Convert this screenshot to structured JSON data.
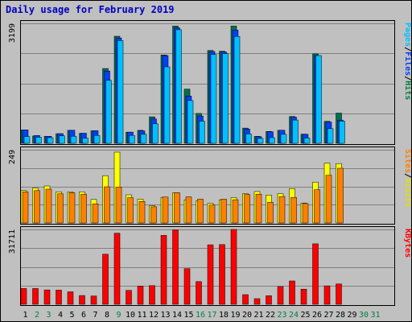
{
  "chart_data": {
    "type": "bar",
    "title": "Daily usage for February 2019",
    "days": [
      "1",
      "2",
      "3",
      "4",
      "5",
      "6",
      "7",
      "8",
      "9",
      "10",
      "11",
      "12",
      "13",
      "14",
      "15",
      "16",
      "17",
      "18",
      "19",
      "20",
      "21",
      "22",
      "23",
      "24",
      "25",
      "26",
      "27",
      "28",
      "29",
      "30",
      "31"
    ],
    "weekend_days": [
      "2",
      "3",
      "9",
      "16",
      "17",
      "23",
      "24",
      "30",
      "31"
    ],
    "panels": [
      {
        "name": "hits",
        "scale_max_label": "3199",
        "ylim": [
          0,
          3199
        ],
        "legend": [
          {
            "text": "Pages",
            "color": "#00c0ff"
          },
          {
            "text": "/",
            "color": "#000000"
          },
          {
            "text": "Files",
            "color": "#0040ff"
          },
          {
            "text": "/",
            "color": "#000000"
          },
          {
            "text": "Hits",
            "color": "#008040"
          }
        ],
        "series": [
          {
            "name": "Hits",
            "color": "#007050",
            "values": [
              420,
              260,
              250,
              320,
              410,
              330,
              400,
              2060,
              2920,
              360,
              410,
              770,
              2420,
              3190,
              1510,
              860,
              2540,
              2520,
              3190,
              470,
              250,
              380,
              410,
              780,
              310,
              2450,
              650,
              870,
              0,
              0,
              0
            ]
          },
          {
            "name": "Files",
            "color": "#0040ff",
            "values": [
              390,
              240,
              220,
              290,
              380,
              300,
              370,
              1960,
              2840,
              330,
              360,
              680,
              2370,
              3110,
              1290,
              760,
              2480,
              2470,
              3050,
              410,
              210,
              340,
              380,
              730,
              270,
              2370,
              600,
              650,
              0,
              0,
              0
            ]
          },
          {
            "name": "Pages",
            "color": "#00c0ff",
            "values": [
              180,
              160,
              150,
              200,
              190,
              140,
              210,
              1680,
              2740,
              210,
              240,
              520,
              2040,
              3030,
              1140,
              590,
              2370,
              2390,
              2850,
              250,
              130,
              150,
              240,
              620,
              140,
              2340,
              390,
              590,
              0,
              0,
              0
            ]
          }
        ]
      },
      {
        "name": "visits",
        "scale_max_label": "249",
        "ylim": [
          0,
          249
        ],
        "legend": [
          {
            "text": "Sites",
            "color": "#ff8000"
          },
          {
            "text": "/",
            "color": "#000000"
          },
          {
            "text": "Visits",
            "color": "#e0e000"
          }
        ],
        "series": [
          {
            "name": "Visits",
            "color": "#ffff00",
            "values": [
              114,
              123,
              130,
              110,
              110,
              110,
              84,
              165,
              245,
              100,
              85,
              63,
              91,
              107,
              83,
              80,
              71,
              83,
              90,
              104,
              111,
              99,
              104,
              121,
              72,
              143,
              207,
              206,
              0,
              0,
              0
            ]
          },
          {
            "name": "Sites",
            "color": "#ff8000",
            "values": [
              106,
              110,
              115,
              99,
              103,
              98,
              65,
              123,
              122,
              86,
              73,
              55,
              88,
              103,
              89,
              81,
              61,
              81,
              79,
              97,
              98,
              70,
              90,
              87,
              66,
              113,
              162,
              186,
              0,
              0,
              0
            ]
          }
        ]
      },
      {
        "name": "kbytes",
        "scale_max_label": "31711",
        "ylim": [
          0,
          31711
        ],
        "legend": [
          {
            "text": "KBytes",
            "color": "#ff0000"
          }
        ],
        "series": [
          {
            "name": "KBytes",
            "color": "#ff0000",
            "values": [
              6700,
              6700,
              6100,
              6000,
              5300,
              3700,
              3500,
              21200,
              30100,
              5900,
              7700,
              7900,
              29200,
              31500,
              15100,
              9600,
              25200,
              25300,
              31711,
              4100,
              2400,
              3600,
              7500,
              9900,
              6400,
              25600,
              7800,
              8600,
              0,
              0,
              0
            ]
          }
        ]
      }
    ]
  }
}
